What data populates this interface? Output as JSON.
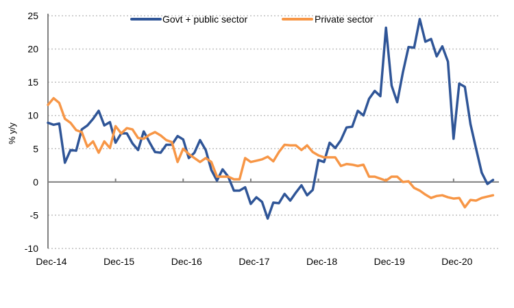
{
  "chart_data": {
    "type": "line",
    "title": "",
    "xlabel": "",
    "ylabel": "% y/y",
    "ylim": [
      -10,
      25
    ],
    "yticks": [
      -10,
      -5,
      0,
      5,
      10,
      15,
      20,
      25
    ],
    "ytick_labels": [
      "-10",
      "-5",
      "0",
      "5",
      "10",
      "15",
      "20",
      "25"
    ],
    "xtick_labels": [
      "Dec-14",
      "Dec-15",
      "Dec-16",
      "Dec-17",
      "Dec-18",
      "Dec-19",
      "Dec-20"
    ],
    "xtick_month_index": [
      0,
      12,
      24,
      36,
      48,
      60,
      72
    ],
    "x_start": "Dec-14",
    "x_frequency": "monthly",
    "grid": "horizontal dotted",
    "legend_position": "top",
    "series": [
      {
        "name": "Govt + public sector",
        "color": "#2F5597",
        "values": [
          8.9,
          8.6,
          8.8,
          2.9,
          4.8,
          4.7,
          7.9,
          8.5,
          9.5,
          10.7,
          8.5,
          9.0,
          5.9,
          7.3,
          7.3,
          5.8,
          4.8,
          7.6,
          6.0,
          4.5,
          4.4,
          5.6,
          5.6,
          6.9,
          6.4,
          3.6,
          4.4,
          6.3,
          4.8,
          1.8,
          0.2,
          1.9,
          0.8,
          -1.3,
          -1.3,
          -0.8,
          -3.3,
          -2.3,
          -3.0,
          -5.5,
          -3.1,
          -3.2,
          -1.8,
          -2.8,
          -1.6,
          -0.5,
          -2.0,
          -1.2,
          3.3,
          3.0,
          5.9,
          5.1,
          6.3,
          8.2,
          8.3,
          10.7,
          10.0,
          12.5,
          13.7,
          12.9,
          23.2,
          14.5,
          12.0,
          16.5,
          20.3,
          20.2,
          24.5,
          21.1,
          21.5,
          18.9,
          20.4,
          18.1,
          6.5,
          14.8,
          14.3,
          8.7,
          5.0,
          1.4,
          -0.3,
          0.3
        ]
      },
      {
        "name": "Private sector",
        "color": "#F79646",
        "values": [
          11.6,
          12.6,
          11.9,
          9.5,
          8.9,
          7.8,
          7.5,
          5.3,
          6.1,
          4.4,
          6.1,
          5.1,
          8.4,
          7.3,
          8.1,
          7.9,
          6.6,
          6.5,
          7.1,
          7.5,
          7.0,
          6.3,
          6.0,
          3.0,
          5.0,
          4.2,
          3.6,
          3.0,
          3.6,
          3.0,
          0.8,
          0.8,
          0.8,
          0.4,
          0.4,
          3.6,
          3.0,
          3.2,
          3.4,
          3.8,
          3.1,
          4.5,
          5.6,
          5.5,
          5.5,
          4.8,
          5.5,
          4.5,
          4.0,
          3.7,
          3.7,
          3.7,
          2.4,
          2.7,
          2.6,
          2.4,
          2.6,
          0.8,
          0.8,
          0.5,
          0.2,
          0.8,
          0.8,
          0.0,
          0.1,
          -0.9,
          -1.3,
          -1.9,
          -2.4,
          -2.1,
          -2.0,
          -2.3,
          -2.5,
          -2.4,
          -3.8,
          -2.7,
          -2.8,
          -2.4,
          -2.2,
          -2.0
        ]
      }
    ]
  }
}
